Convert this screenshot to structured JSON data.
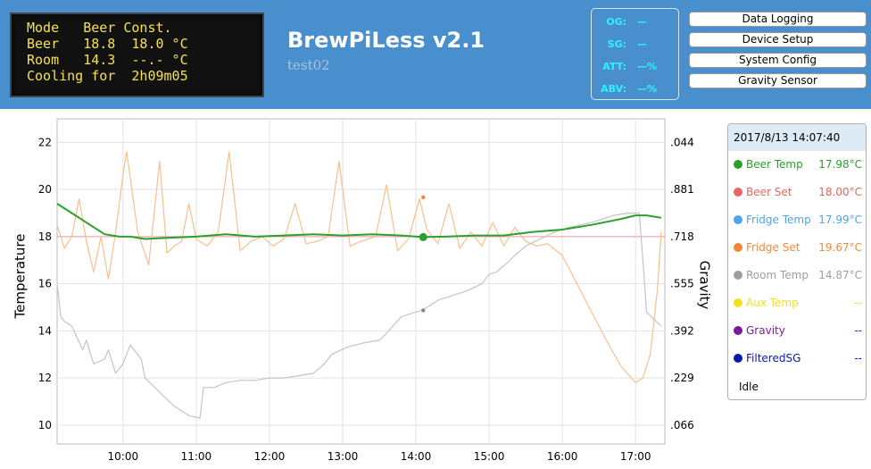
{
  "lcd": {
    "lines": [
      "Mode   Beer Const.",
      "Beer   18.8  18.0 °C",
      "Room   14.3  --.- °C",
      "Cooling for  2h09m05"
    ]
  },
  "header": {
    "title": "BrewPiLess v2.1",
    "subtitle": "test02"
  },
  "gravity_box": {
    "rows": [
      {
        "label": "OG:",
        "value": "—"
      },
      {
        "label": "SG:",
        "value": "—"
      },
      {
        "label": "ATT:",
        "value": "—%"
      },
      {
        "label": "ABV:",
        "value": "—%"
      }
    ]
  },
  "menu": {
    "buttons": [
      "Data Logging",
      "Device Setup",
      "System Config",
      "Gravity Sensor"
    ]
  },
  "axes": {
    "left_label": "Temperature",
    "right_label": "Gravity",
    "left_ticks": [
      "22",
      "20",
      "18",
      "16",
      "14",
      "12",
      "10"
    ],
    "right_ticks": [
      ".044",
      ".881",
      ".718",
      ".555",
      ".392",
      ".229",
      ".066"
    ],
    "x_ticks": [
      "10:00",
      "11:00",
      "12:00",
      "13:00",
      "14:00",
      "15:00",
      "16:00",
      "17:00"
    ]
  },
  "legend": {
    "timestamp": "2017/8/13 14:07:40",
    "items": [
      {
        "name": "Beer Temp",
        "value": "17.98°C",
        "color": "#2ca02c"
      },
      {
        "name": "Beer Set",
        "value": "18.00°C",
        "color": "#e8665f"
      },
      {
        "name": "Fridge Temp",
        "value": "17.99°C",
        "color": "#4da6e8"
      },
      {
        "name": "Fridge Set",
        "value": "19.67°C",
        "color": "#f0883a"
      },
      {
        "name": "Room Temp",
        "value": "14.87°C",
        "color": "#9e9e9e"
      },
      {
        "name": "Aux Temp",
        "value": "--",
        "color": "#f2e01f"
      },
      {
        "name": "Gravity",
        "value": "--",
        "color": "#7a1a9a"
      },
      {
        "name": "FilteredSG",
        "value": "--",
        "color": "#0a1aa6"
      }
    ],
    "status": "Idle"
  },
  "chart_data": {
    "type": "line",
    "xlabel": "",
    "ylabel": "Temperature",
    "y2label": "Gravity",
    "ylim": [
      9.2,
      23
    ],
    "xlim_hours": [
      9.1,
      17.4
    ],
    "x_ticks": [
      "10:00",
      "11:00",
      "12:00",
      "13:00",
      "14:00",
      "15:00",
      "16:00",
      "17:00"
    ],
    "series": [
      {
        "name": "Beer Temp",
        "color": "#2ca02c",
        "x": [
          9.1,
          9.3,
          9.55,
          9.75,
          9.95,
          10.1,
          10.3,
          10.6,
          11.0,
          11.4,
          11.8,
          12.2,
          12.6,
          13.0,
          13.4,
          13.8,
          14.1,
          14.4,
          14.8,
          15.2,
          15.6,
          16.0,
          16.4,
          16.8,
          17.0,
          17.15,
          17.35
        ],
        "y": [
          19.4,
          19.0,
          18.5,
          18.1,
          18.0,
          18.0,
          17.9,
          17.95,
          18.0,
          18.1,
          18.0,
          18.05,
          18.1,
          18.05,
          18.1,
          18.05,
          17.98,
          18.0,
          18.05,
          18.05,
          18.2,
          18.3,
          18.5,
          18.75,
          18.9,
          18.9,
          18.8
        ]
      },
      {
        "name": "Beer Set",
        "color": "#f2aab6",
        "x": [
          9.1,
          17.4
        ],
        "y": [
          18.0,
          18.0
        ]
      },
      {
        "name": "Fridge Set",
        "color": "#f6c08e",
        "x": [
          9.1,
          9.2,
          9.3,
          9.4,
          9.5,
          9.6,
          9.7,
          9.8,
          9.9,
          10.0,
          10.05,
          10.2,
          10.35,
          10.5,
          10.6,
          10.7,
          10.8,
          10.9,
          11.0,
          11.15,
          11.3,
          11.45,
          11.6,
          11.75,
          11.9,
          12.05,
          12.2,
          12.35,
          12.5,
          12.65,
          12.8,
          12.95,
          13.1,
          13.25,
          13.45,
          13.6,
          13.75,
          13.9,
          14.05,
          14.15,
          14.3,
          14.45,
          14.6,
          14.75,
          14.9,
          15.05,
          15.2,
          15.35,
          15.5,
          15.65,
          15.8,
          16.0,
          16.2,
          16.4,
          16.6,
          16.8,
          17.0,
          17.1,
          17.2,
          17.3,
          17.35
        ],
        "y": [
          18.5,
          17.5,
          18.0,
          19.6,
          17.8,
          16.5,
          18.0,
          16.2,
          18.2,
          20.6,
          21.6,
          18.2,
          16.8,
          21.2,
          17.3,
          17.6,
          17.8,
          19.4,
          17.9,
          17.6,
          18.2,
          21.6,
          17.4,
          17.8,
          18.0,
          17.6,
          17.9,
          19.4,
          17.7,
          17.8,
          18.0,
          21.2,
          17.6,
          17.8,
          18.0,
          20.2,
          17.4,
          17.9,
          19.6,
          18.3,
          17.7,
          19.4,
          17.5,
          18.2,
          17.6,
          18.6,
          17.6,
          18.4,
          17.8,
          17.6,
          17.7,
          17.2,
          16.0,
          14.8,
          13.6,
          12.5,
          11.8,
          12.0,
          13.0,
          15.8,
          18.2
        ]
      },
      {
        "name": "Room Temp",
        "color": "#c4c4c4",
        "x": [
          9.1,
          9.15,
          9.2,
          9.3,
          9.45,
          9.5,
          9.6,
          9.75,
          9.8,
          9.9,
          10.0,
          10.1,
          10.25,
          10.3,
          10.5,
          10.7,
          10.9,
          11.05,
          11.1,
          11.25,
          11.4,
          11.6,
          11.8,
          12.0,
          12.2,
          12.4,
          12.6,
          12.75,
          12.85,
          13.05,
          13.3,
          13.5,
          13.6,
          13.8,
          14.0,
          14.1,
          14.3,
          14.5,
          14.7,
          14.9,
          15.0,
          15.1,
          15.25,
          15.35,
          15.5,
          15.7,
          15.9,
          16.1,
          16.4,
          16.7,
          16.9,
          17.05,
          17.1,
          17.15,
          17.25,
          17.35
        ],
        "y": [
          16.0,
          14.6,
          14.4,
          14.2,
          13.2,
          13.6,
          12.6,
          12.8,
          13.2,
          12.2,
          12.6,
          13.4,
          12.8,
          12.0,
          11.4,
          10.8,
          10.4,
          10.3,
          11.6,
          11.6,
          11.8,
          11.9,
          11.9,
          12.0,
          12.0,
          12.1,
          12.2,
          12.6,
          13.0,
          13.3,
          13.5,
          13.6,
          13.9,
          14.6,
          14.8,
          14.9,
          15.3,
          15.5,
          15.7,
          16.0,
          16.4,
          16.5,
          16.9,
          17.2,
          17.6,
          17.9,
          18.2,
          18.4,
          18.6,
          18.9,
          19.0,
          19.0,
          17.0,
          14.8,
          14.5,
          14.2
        ]
      }
    ],
    "markers": [
      {
        "series": "Beer Temp",
        "x": 14.1,
        "y": 17.98
      },
      {
        "series": "Fridge Set",
        "x": 14.1,
        "y": 19.67
      },
      {
        "series": "Room Temp",
        "x": 14.1,
        "y": 14.87
      }
    ],
    "grid": true
  }
}
